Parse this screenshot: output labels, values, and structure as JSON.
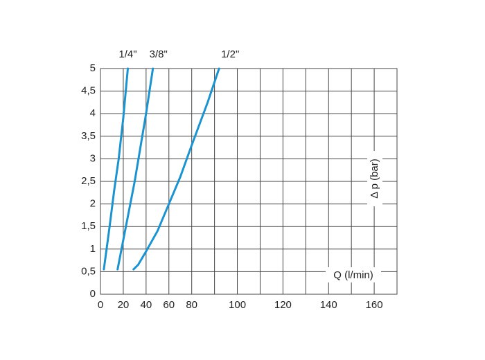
{
  "chart_data": {
    "type": "line",
    "x_label": "Q (l/min)",
    "y_label": "Δ p (bar)",
    "xlim": [
      0,
      170
    ],
    "ylim": [
      0,
      5
    ],
    "xgrid": [
      0,
      20,
      40,
      60,
      80,
      90,
      100,
      110,
      120,
      130,
      140,
      150,
      160,
      170
    ],
    "xticks": [
      0,
      20,
      40,
      60,
      80,
      100,
      120,
      140,
      160
    ],
    "yticks": [
      0,
      {
        "value": 0.5,
        "label": "0,5"
      },
      1,
      {
        "value": 1.5,
        "label": "1,5"
      },
      2,
      {
        "value": 2.5,
        "label": "2,5"
      },
      3,
      {
        "value": 3.5,
        "label": "3,5"
      },
      4,
      {
        "value": 4.5,
        "label": "4,5"
      },
      5
    ],
    "grid": true,
    "series": [
      {
        "name": "1/4\"",
        "color": "#1b93d0",
        "x": [
          3,
          8,
          12,
          16,
          20,
          24
        ],
        "values": [
          0.55,
          1.5,
          2.3,
          3,
          3.9,
          5
        ]
      },
      {
        "name": "3/8\"",
        "color": "#1b93d0",
        "x": [
          15,
          20,
          30,
          40,
          46
        ],
        "values": [
          0.55,
          1.2,
          2.5,
          4,
          5
        ]
      },
      {
        "name": "1/2\"",
        "color": "#1b93d0",
        "x": [
          29,
          33,
          40,
          50,
          60,
          70,
          80,
          87,
          92
        ],
        "values": [
          0.55,
          0.65,
          0.95,
          1.4,
          2,
          2.6,
          3.3,
          4.25,
          5
        ]
      }
    ]
  }
}
